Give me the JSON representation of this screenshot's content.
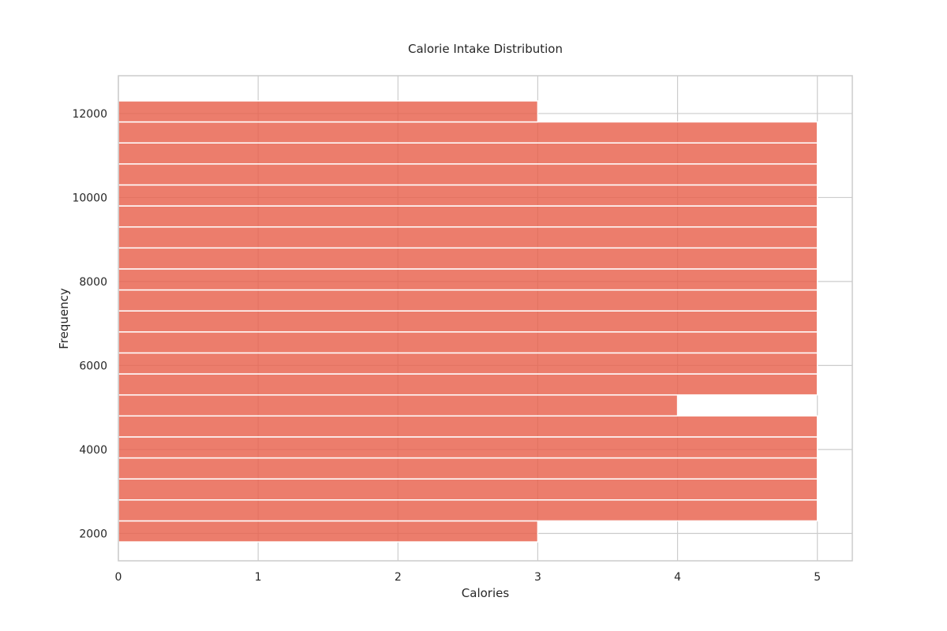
{
  "chart_data": {
    "type": "bar",
    "orientation": "horizontal",
    "title": "Calorie Intake Distribution",
    "xlabel": "Calories",
    "ylabel": "Frequency",
    "xlim": [
      0,
      5.25
    ],
    "ylim": [
      1350,
      12900
    ],
    "xticks": [
      0,
      1,
      2,
      3,
      4,
      5
    ],
    "yticks": [
      2000,
      4000,
      6000,
      8000,
      10000,
      12000
    ],
    "bin_width": 500,
    "bins": [
      {
        "start": 1800,
        "value": 3
      },
      {
        "start": 2300,
        "value": 5
      },
      {
        "start": 2800,
        "value": 5
      },
      {
        "start": 3300,
        "value": 5
      },
      {
        "start": 3800,
        "value": 5
      },
      {
        "start": 4300,
        "value": 5
      },
      {
        "start": 4800,
        "value": 4
      },
      {
        "start": 5300,
        "value": 5
      },
      {
        "start": 5800,
        "value": 5
      },
      {
        "start": 6300,
        "value": 5
      },
      {
        "start": 6800,
        "value": 5
      },
      {
        "start": 7300,
        "value": 5
      },
      {
        "start": 7800,
        "value": 5
      },
      {
        "start": 8300,
        "value": 5
      },
      {
        "start": 8800,
        "value": 5
      },
      {
        "start": 9300,
        "value": 5
      },
      {
        "start": 9800,
        "value": 5
      },
      {
        "start": 10300,
        "value": 5
      },
      {
        "start": 10800,
        "value": 5
      },
      {
        "start": 11300,
        "value": 5
      },
      {
        "start": 11800,
        "value": 3
      }
    ],
    "bar_color": "#e8604c",
    "grid": true
  }
}
